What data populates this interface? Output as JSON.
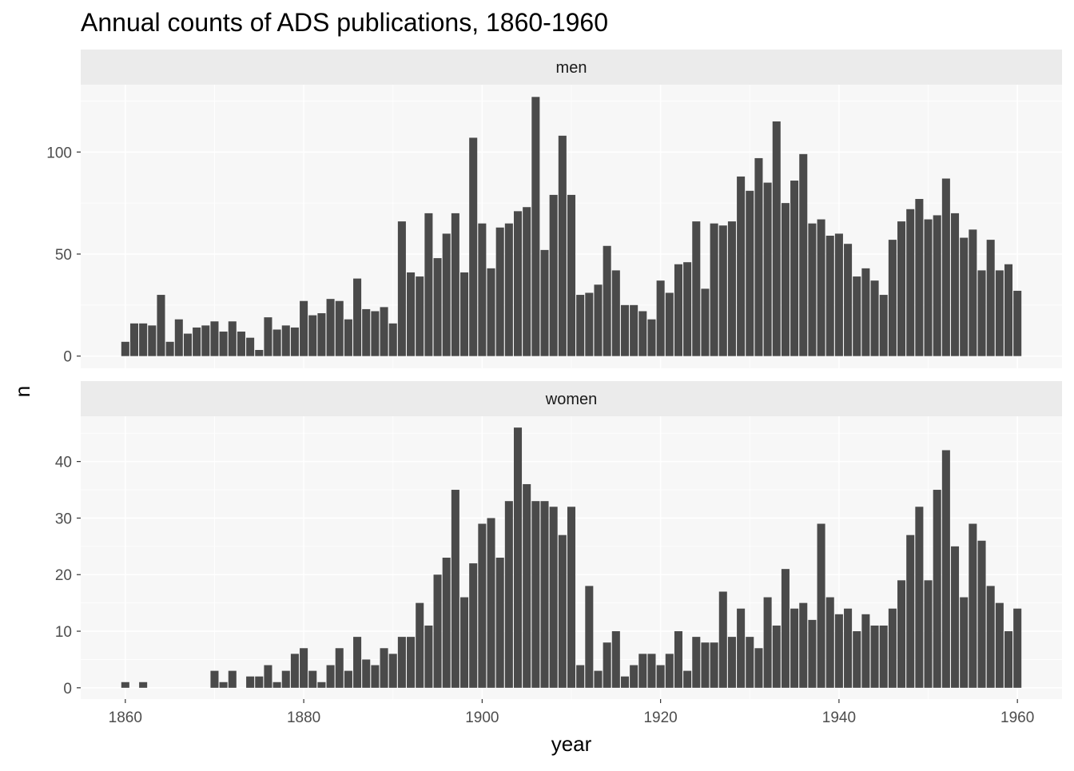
{
  "chart_data": {
    "type": "bar",
    "title": "Annual counts of ADS publications, 1860-1960",
    "xlabel": "year",
    "ylabel": "n",
    "x_ticks": [
      1860,
      1880,
      1900,
      1920,
      1940,
      1960
    ],
    "xlim": [
      1855,
      1965
    ],
    "grid": true,
    "bar_color": "#4a4a4a",
    "panel_bg": "#f7f7f7",
    "strip_bg": "#ebebeb",
    "grid_color": "#ffffff",
    "facets": [
      {
        "label": "men",
        "y_ticks": [
          0,
          50,
          100
        ],
        "ylim": [
          -6,
          133
        ],
        "x": [
          1860,
          1861,
          1862,
          1863,
          1864,
          1865,
          1866,
          1867,
          1868,
          1869,
          1870,
          1871,
          1872,
          1873,
          1874,
          1875,
          1876,
          1877,
          1878,
          1879,
          1880,
          1881,
          1882,
          1883,
          1884,
          1885,
          1886,
          1887,
          1888,
          1889,
          1890,
          1891,
          1892,
          1893,
          1894,
          1895,
          1896,
          1897,
          1898,
          1899,
          1900,
          1901,
          1902,
          1903,
          1904,
          1905,
          1906,
          1907,
          1908,
          1909,
          1910,
          1911,
          1912,
          1913,
          1914,
          1915,
          1916,
          1917,
          1918,
          1919,
          1920,
          1921,
          1922,
          1923,
          1924,
          1925,
          1926,
          1927,
          1928,
          1929,
          1930,
          1931,
          1932,
          1933,
          1934,
          1935,
          1936,
          1937,
          1938,
          1939,
          1940,
          1941,
          1942,
          1943,
          1944,
          1945,
          1946,
          1947,
          1948,
          1949,
          1950,
          1951,
          1952,
          1953,
          1954,
          1955,
          1956,
          1957,
          1958,
          1959,
          1960
        ],
        "values": [
          7,
          16,
          16,
          15,
          30,
          7,
          18,
          11,
          14,
          15,
          17,
          12,
          17,
          12,
          9,
          3,
          19,
          13,
          15,
          14,
          27,
          20,
          21,
          28,
          27,
          18,
          38,
          23,
          22,
          24,
          16,
          66,
          41,
          39,
          70,
          48,
          60,
          70,
          41,
          107,
          65,
          43,
          63,
          65,
          71,
          73,
          127,
          52,
          79,
          108,
          79,
          30,
          31,
          35,
          54,
          42,
          25,
          25,
          22,
          18,
          37,
          31,
          45,
          46,
          66,
          33,
          65,
          64,
          66,
          88,
          81,
          97,
          85,
          115,
          75,
          86,
          99,
          65,
          67,
          59,
          60,
          55,
          39,
          43,
          37,
          30,
          57,
          66,
          72,
          77,
          67,
          69,
          87,
          70,
          58,
          62,
          42,
          57,
          42,
          45,
          32
        ]
      },
      {
        "label": "women",
        "y_ticks": [
          0,
          10,
          20,
          30,
          40
        ],
        "ylim": [
          -2,
          48
        ],
        "x": [
          1860,
          1861,
          1862,
          1863,
          1864,
          1865,
          1866,
          1867,
          1868,
          1869,
          1870,
          1871,
          1872,
          1873,
          1874,
          1875,
          1876,
          1877,
          1878,
          1879,
          1880,
          1881,
          1882,
          1883,
          1884,
          1885,
          1886,
          1887,
          1888,
          1889,
          1890,
          1891,
          1892,
          1893,
          1894,
          1895,
          1896,
          1897,
          1898,
          1899,
          1900,
          1901,
          1902,
          1903,
          1904,
          1905,
          1906,
          1907,
          1908,
          1909,
          1910,
          1911,
          1912,
          1913,
          1914,
          1915,
          1916,
          1917,
          1918,
          1919,
          1920,
          1921,
          1922,
          1923,
          1924,
          1925,
          1926,
          1927,
          1928,
          1929,
          1930,
          1931,
          1932,
          1933,
          1934,
          1935,
          1936,
          1937,
          1938,
          1939,
          1940,
          1941,
          1942,
          1943,
          1944,
          1945,
          1946,
          1947,
          1948,
          1949,
          1950,
          1951,
          1952,
          1953,
          1954,
          1955,
          1956,
          1957,
          1958,
          1959,
          1960
        ],
        "values": [
          1,
          0,
          1,
          0,
          0,
          0,
          0,
          0,
          0,
          0,
          3,
          1,
          3,
          0,
          2,
          2,
          4,
          1,
          3,
          6,
          7,
          3,
          1,
          4,
          7,
          3,
          9,
          5,
          4,
          7,
          6,
          9,
          9,
          15,
          11,
          20,
          23,
          35,
          16,
          22,
          29,
          30,
          23,
          33,
          46,
          36,
          33,
          33,
          32,
          27,
          32,
          4,
          18,
          3,
          8,
          10,
          2,
          4,
          6,
          6,
          4,
          6,
          10,
          3,
          9,
          8,
          8,
          17,
          9,
          14,
          9,
          7,
          16,
          11,
          21,
          14,
          15,
          12,
          29,
          16,
          13,
          14,
          10,
          13,
          11,
          11,
          14,
          19,
          27,
          32,
          19,
          35,
          42,
          25,
          16,
          29,
          26,
          18,
          15,
          10,
          14
        ]
      }
    ]
  }
}
